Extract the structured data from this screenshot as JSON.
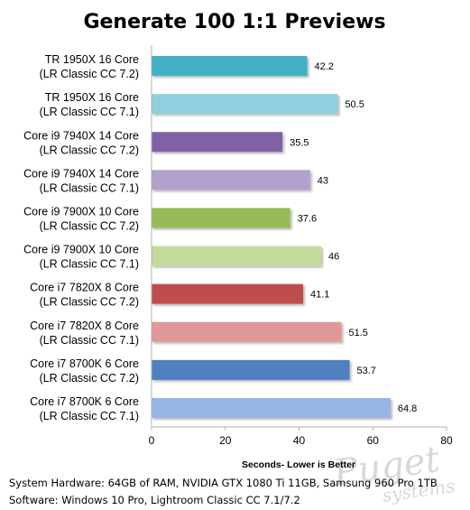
{
  "chart_data": {
    "type": "bar",
    "orientation": "horizontal",
    "title": "Generate 100 1:1 Previews",
    "xlabel": "Seconds- Lower is Better",
    "xlim": [
      0,
      80
    ],
    "xticks": [
      0,
      20,
      40,
      60,
      80
    ],
    "grid": false,
    "legend": "none",
    "categories": [
      [
        "TR 1950X 16 Core",
        "(LR Classic CC 7.2)"
      ],
      [
        "TR 1950X 16 Core",
        "(LR Classic CC 7.1)"
      ],
      [
        "Core i9 7940X 14 Core",
        "(LR Classic CC 7.2)"
      ],
      [
        "Core i9 7940X 14 Core",
        "(LR Classic CC 7.1)"
      ],
      [
        "Core i9 7900X 10 Core",
        "(LR Classic CC 7.2)"
      ],
      [
        "Core i9 7900X 10 Core",
        "(LR Classic CC 7.1)"
      ],
      [
        "Core i7 7820X 8 Core",
        "(LR Classic CC 7.2)"
      ],
      [
        "Core i7 7820X 8 Core",
        "(LR Classic CC 7.1)"
      ],
      [
        "Core i7 8700K 6 Core",
        "(LR Classic CC 7.2)"
      ],
      [
        "Core i7 8700K 6 Core",
        "(LR Classic CC 7.1)"
      ]
    ],
    "values": [
      42.2,
      50.5,
      35.5,
      43,
      37.6,
      46,
      41.1,
      51.5,
      53.7,
      64.8
    ],
    "value_labels": [
      "42.2",
      "50.5",
      "35.5",
      "43",
      "37.6",
      "46",
      "41.1",
      "51.5",
      "53.7",
      "64.8"
    ],
    "colors": [
      "#3fb1c6",
      "#91cfdf",
      "#7f62a6",
      "#b3a1cc",
      "#97bb56",
      "#c3da9b",
      "#c04d4d",
      "#e09797",
      "#4f80c0",
      "#95b6e2"
    ]
  },
  "footer": {
    "line1": "System Hardware: 64GB of RAM, NVIDIA GTX 1080  Ti 11GB, Samsung 960 Pro 1TB",
    "line2": "Software: Windows 10 Pro, Lightroom Classic CC 7.1/7.2"
  },
  "watermark": {
    "line1": "Puget",
    "line2": "systems"
  }
}
